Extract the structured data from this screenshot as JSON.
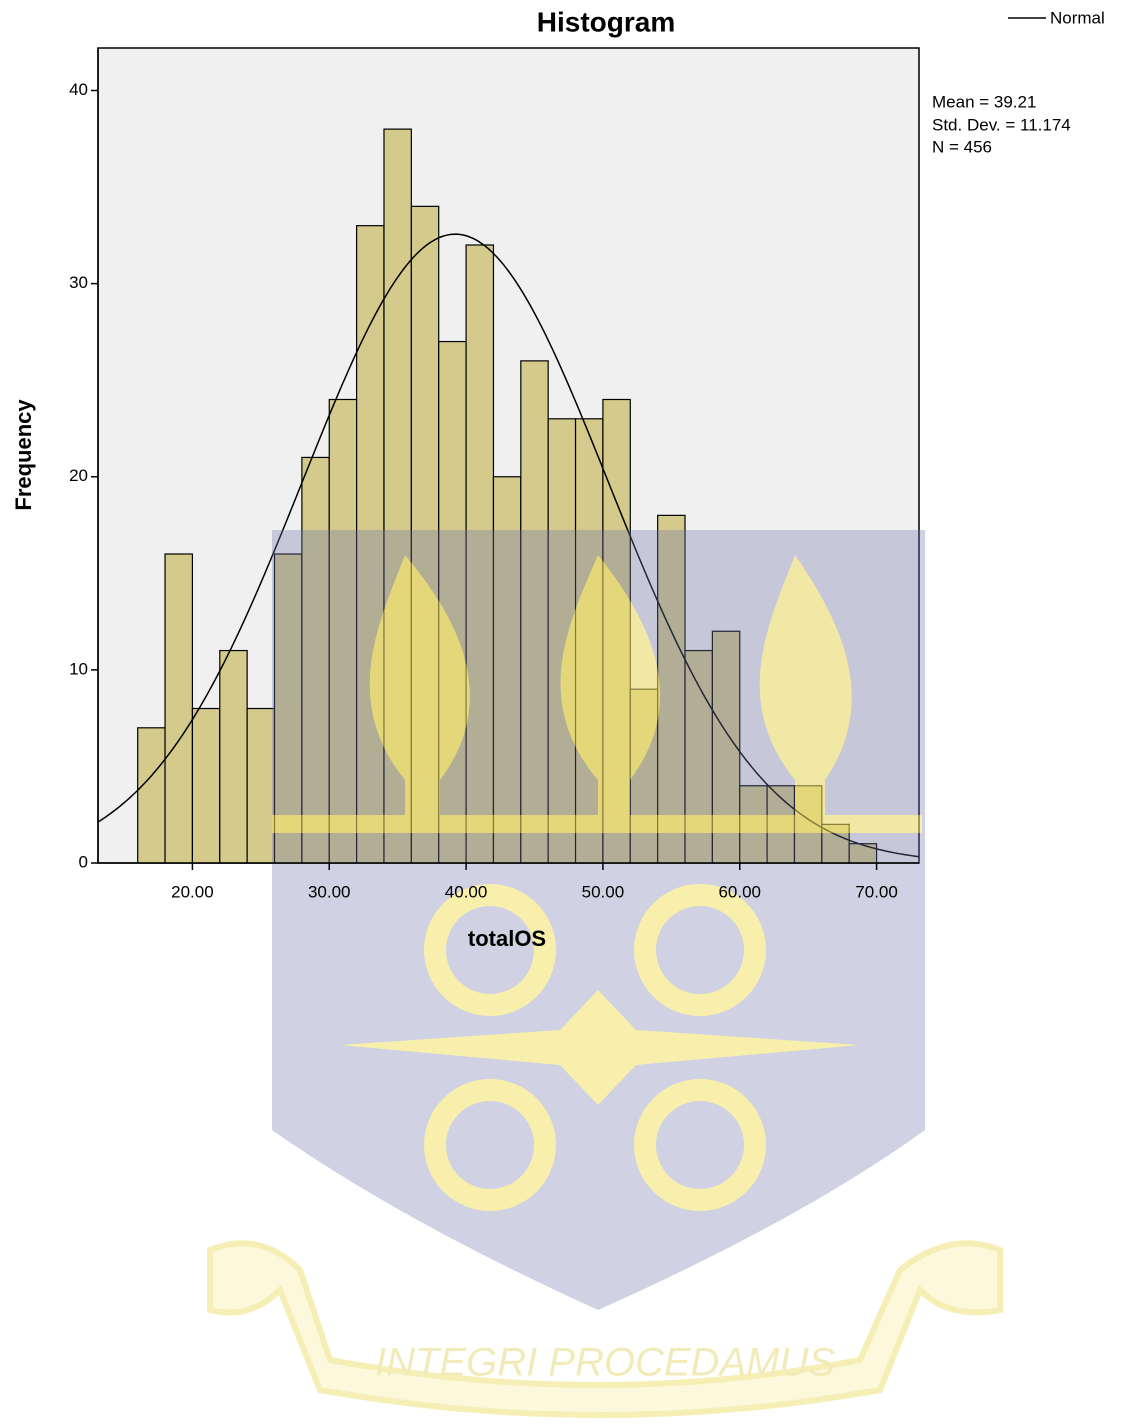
{
  "chart_data": {
    "type": "histogram",
    "title": "Histogram",
    "x_label": "totalOS",
    "y_label": "Frequency",
    "bins": [
      16,
      18,
      20,
      22,
      24,
      26,
      28,
      30,
      32,
      34,
      36,
      38,
      40,
      42,
      44,
      46,
      48,
      50,
      52,
      54,
      56,
      58,
      60,
      62,
      64,
      66,
      68,
      70
    ],
    "counts": [
      7,
      16,
      8,
      11,
      8,
      16,
      21,
      24,
      33,
      38,
      34,
      27,
      32,
      20,
      26,
      23,
      23,
      24,
      9,
      18,
      11,
      12,
      4,
      4,
      4,
      2,
      1
    ],
    "color": "#d3ca8c",
    "xlim": [
      13.1,
      73.1
    ],
    "ylim": [
      0,
      42.2
    ],
    "xticks": [
      {
        "value": 20,
        "label": "20.00"
      },
      {
        "value": 30,
        "label": "30.00"
      },
      {
        "value": 40,
        "label": "40.00"
      },
      {
        "value": 50,
        "label": "50.00"
      },
      {
        "value": 60,
        "label": "60.00"
      },
      {
        "value": 70,
        "label": "70.00"
      }
    ],
    "yticks": [
      0,
      10,
      20,
      30,
      40
    ],
    "curve": {
      "name": "Normal",
      "color": "#000000"
    },
    "normal": {
      "mean": {
        "value": 39.21,
        "label": "Mean = 39.21"
      },
      "sd": {
        "value": 11.174,
        "label": "Std. Dev. = 11.174"
      },
      "n": {
        "value": 456,
        "label": "N = 456"
      }
    },
    "watermark": "INTEGRI PROCEDAMUS"
  }
}
